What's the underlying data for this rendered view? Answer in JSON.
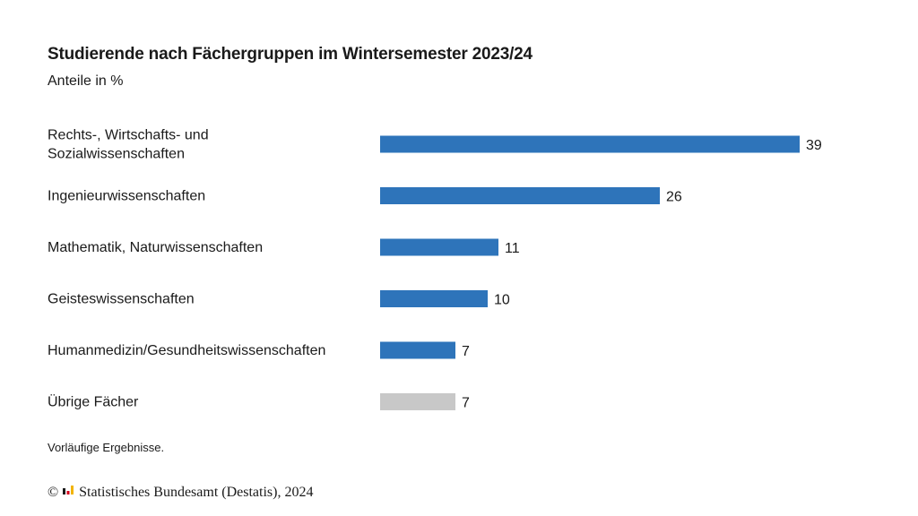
{
  "chart_data": {
    "type": "bar",
    "orientation": "horizontal",
    "title": "Studierende nach Fächergruppen im Wintersemester 2023/24",
    "subtitle": "Anteile in %",
    "categories": [
      [
        "Rechts-, Wirtschafts- und",
        "Sozialwissenschaften"
      ],
      [
        "Ingenieurwissenschaften"
      ],
      [
        "Mathematik, Naturwissenschaften"
      ],
      [
        "Geisteswissenschaften"
      ],
      [
        "Humanmedizin/Gesundheitswissenschaften"
      ],
      [
        "Übrige Fächer"
      ]
    ],
    "values": [
      39,
      26,
      11,
      10,
      7,
      7
    ],
    "bar_colors": [
      "#2e74ba",
      "#2e74ba",
      "#2e74ba",
      "#2e74ba",
      "#2e74ba",
      "#c8c8c8"
    ],
    "xlim": [
      0,
      39
    ],
    "grid": false,
    "note": "Vorläufige Ergebnisse."
  },
  "footer": {
    "copyright_symbol": "©",
    "source": "Statistisches Bundesamt (Destatis), 2024"
  }
}
